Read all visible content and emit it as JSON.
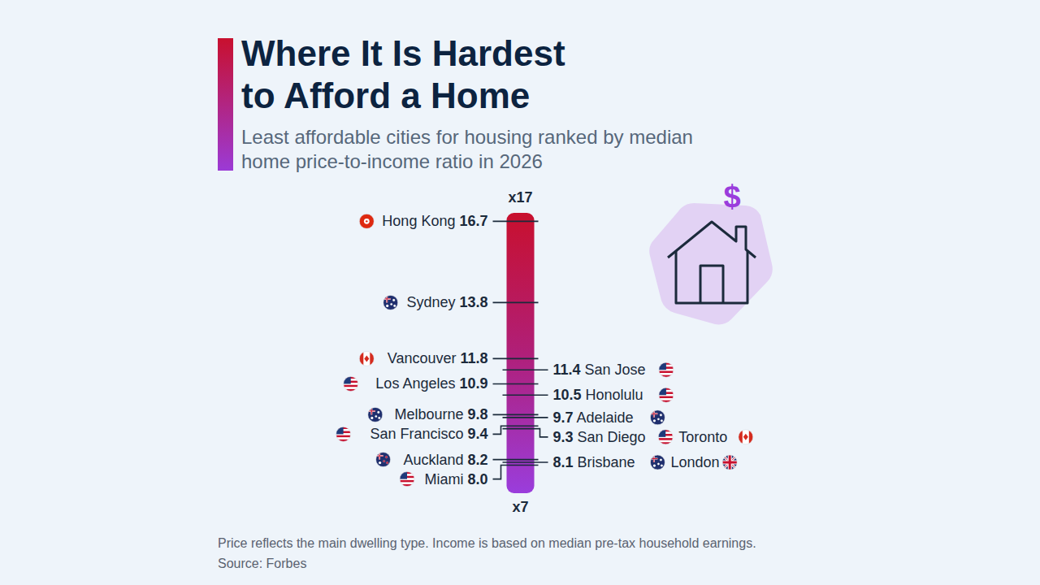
{
  "chart_data": {
    "type": "scatter",
    "title": "Where It Is Hardest to Afford a Home",
    "subtitle": "Least affordable cities for housing ranked by median home price-to-income ratio in 2026",
    "categories": [
      "Hong Kong",
      "Sydney",
      "Vancouver",
      "San Jose",
      "Los Angeles",
      "Honolulu",
      "Melbourne",
      "Adelaide",
      "San Francisco",
      "San Diego",
      "Toronto",
      "Auckland",
      "Brisbane",
      "London",
      "Miami"
    ],
    "values": [
      16.7,
      13.8,
      11.8,
      11.4,
      10.9,
      10.5,
      9.8,
      9.7,
      9.4,
      9.3,
      9.3,
      8.2,
      8.1,
      8.1,
      8.0
    ],
    "value_labels": [
      "16.7",
      "13.8",
      "11.8",
      "11.4",
      "10.9",
      "10.5",
      "9.8",
      "9.7",
      "9.4",
      "9.3",
      "9.3",
      "8.2",
      "8.1",
      "8.1",
      "8.0"
    ],
    "ylim": [
      7,
      17
    ],
    "yticks": [
      {
        "value": 7,
        "label": "x7"
      },
      {
        "value": 17,
        "label": "x17"
      }
    ],
    "data_labels": true,
    "grid": false,
    "note": "Price reflects the main dwelling type. Income is based on median pre-tax household earnings.",
    "source": "Source: Forbes",
    "icon": "$"
  }
}
